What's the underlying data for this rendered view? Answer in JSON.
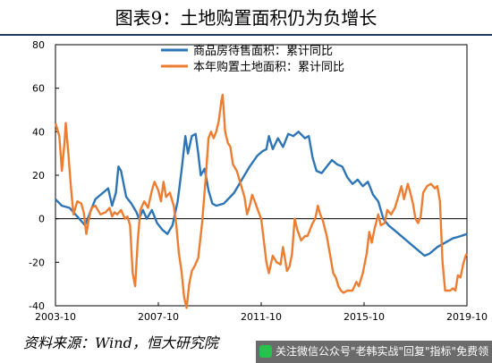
{
  "title": "图表9：土地购置面积仍为负增长",
  "source_text": "资料来源：Wind，恒大研究院",
  "banner": {
    "text": "关注微信公众号\"老韩实战\"回复\"指标\"免费领",
    "icon": "wechat-icon"
  },
  "chart_data": {
    "type": "line",
    "title": "",
    "xlabel": "",
    "ylabel": "",
    "ylim": [
      -40,
      80
    ],
    "yticks": [
      "80",
      "60",
      "40",
      "20",
      "0",
      "-20",
      "-40"
    ],
    "xticks": [
      "2003-10",
      "2007-10",
      "2011-10",
      "2015-10",
      "2019-10"
    ],
    "xlim": [
      2003.75,
      2019.75
    ],
    "legend_position": "top-center",
    "grid": false,
    "series": [
      {
        "name": "商品房待售面积：累计同比",
        "color": "#2e75b6",
        "points": [
          [
            2003.75,
            9
          ],
          [
            2004.0,
            6
          ],
          [
            2004.3,
            5
          ],
          [
            2004.6,
            1
          ],
          [
            2004.9,
            -3
          ],
          [
            2005.1,
            3
          ],
          [
            2005.3,
            9
          ],
          [
            2005.6,
            12
          ],
          [
            2005.8,
            14
          ],
          [
            2005.95,
            6
          ],
          [
            2006.1,
            12
          ],
          [
            2006.2,
            24
          ],
          [
            2006.3,
            22
          ],
          [
            2006.5,
            10
          ],
          [
            2006.7,
            7
          ],
          [
            2006.9,
            3
          ],
          [
            2007.0,
            0
          ],
          [
            2007.15,
            4
          ],
          [
            2007.3,
            0
          ],
          [
            2007.5,
            4
          ],
          [
            2007.7,
            -2
          ],
          [
            2007.9,
            -5
          ],
          [
            2008.1,
            -7
          ],
          [
            2008.3,
            -3
          ],
          [
            2008.5,
            8
          ],
          [
            2008.65,
            22
          ],
          [
            2008.8,
            38
          ],
          [
            2008.9,
            30
          ],
          [
            2009.05,
            38
          ],
          [
            2009.2,
            39
          ],
          [
            2009.3,
            30
          ],
          [
            2009.4,
            20
          ],
          [
            2009.55,
            23
          ],
          [
            2009.7,
            13
          ],
          [
            2009.85,
            7
          ],
          [
            2010.0,
            6
          ],
          [
            2010.3,
            7
          ],
          [
            2010.7,
            12
          ],
          [
            2011.0,
            18
          ],
          [
            2011.3,
            24
          ],
          [
            2011.6,
            29
          ],
          [
            2011.8,
            31
          ],
          [
            2011.95,
            32
          ],
          [
            2012.05,
            38
          ],
          [
            2012.2,
            32
          ],
          [
            2012.4,
            37
          ],
          [
            2012.6,
            33
          ],
          [
            2012.8,
            39
          ],
          [
            2013.0,
            38
          ],
          [
            2013.2,
            40
          ],
          [
            2013.45,
            37
          ],
          [
            2013.6,
            38
          ],
          [
            2013.75,
            28
          ],
          [
            2013.9,
            22
          ],
          [
            2014.1,
            21
          ],
          [
            2014.3,
            24
          ],
          [
            2014.5,
            27
          ],
          [
            2014.7,
            25
          ],
          [
            2014.9,
            24
          ],
          [
            2015.1,
            19
          ],
          [
            2015.3,
            16
          ],
          [
            2015.5,
            18
          ],
          [
            2015.7,
            15
          ],
          [
            2015.9,
            17
          ],
          [
            2016.1,
            11
          ],
          [
            2016.3,
            8
          ],
          [
            2016.5,
            0
          ],
          [
            2016.7,
            -3
          ],
          [
            2016.9,
            -5
          ],
          [
            2017.2,
            -8
          ],
          [
            2017.5,
            -11
          ],
          [
            2017.8,
            -14
          ],
          [
            2018.1,
            -17
          ],
          [
            2018.3,
            -16
          ],
          [
            2018.6,
            -13
          ],
          [
            2018.9,
            -11
          ],
          [
            2019.2,
            -9
          ],
          [
            2019.5,
            -8
          ],
          [
            2019.75,
            -7
          ]
        ]
      },
      {
        "name": "本年购置土地面积：累计同比",
        "color": "#ed7d31",
        "points": [
          [
            2003.75,
            44
          ],
          [
            2003.9,
            38
          ],
          [
            2004.0,
            22
          ],
          [
            2004.1,
            35
          ],
          [
            2004.15,
            44
          ],
          [
            2004.25,
            30
          ],
          [
            2004.35,
            15
          ],
          [
            2004.45,
            2
          ],
          [
            2004.6,
            8
          ],
          [
            2004.75,
            7
          ],
          [
            2004.85,
            3
          ],
          [
            2004.95,
            -7
          ],
          [
            2005.05,
            0
          ],
          [
            2005.15,
            5
          ],
          [
            2005.3,
            6
          ],
          [
            2005.5,
            2
          ],
          [
            2005.7,
            3
          ],
          [
            2005.85,
            5
          ],
          [
            2005.95,
            1
          ],
          [
            2006.05,
            3
          ],
          [
            2006.15,
            2
          ],
          [
            2006.3,
            4
          ],
          [
            2006.45,
            0
          ],
          [
            2006.55,
            1
          ],
          [
            2006.65,
            -3
          ],
          [
            2006.75,
            -25
          ],
          [
            2006.85,
            -31
          ],
          [
            2006.95,
            -10
          ],
          [
            2007.05,
            4
          ],
          [
            2007.2,
            8
          ],
          [
            2007.35,
            5
          ],
          [
            2007.5,
            13
          ],
          [
            2007.6,
            17
          ],
          [
            2007.75,
            13
          ],
          [
            2007.85,
            8
          ],
          [
            2007.95,
            17
          ],
          [
            2008.05,
            10
          ],
          [
            2008.2,
            12
          ],
          [
            2008.35,
            6
          ],
          [
            2008.45,
            -3
          ],
          [
            2008.55,
            -16
          ],
          [
            2008.65,
            -24
          ],
          [
            2008.75,
            -36
          ],
          [
            2008.85,
            -41
          ],
          [
            2008.95,
            -30
          ],
          [
            2009.05,
            -24
          ],
          [
            2009.15,
            -22
          ],
          [
            2009.3,
            -18
          ],
          [
            2009.45,
            -2
          ],
          [
            2009.6,
            20
          ],
          [
            2009.7,
            37
          ],
          [
            2009.8,
            40
          ],
          [
            2009.9,
            37
          ],
          [
            2010.0,
            40
          ],
          [
            2010.1,
            45
          ],
          [
            2010.2,
            54
          ],
          [
            2010.25,
            57
          ],
          [
            2010.35,
            40
          ],
          [
            2010.45,
            35
          ],
          [
            2010.55,
            33
          ],
          [
            2010.65,
            25
          ],
          [
            2010.8,
            22
          ],
          [
            2010.95,
            16
          ],
          [
            2011.1,
            10
          ],
          [
            2011.2,
            2
          ],
          [
            2011.3,
            6
          ],
          [
            2011.4,
            11
          ],
          [
            2011.5,
            8
          ],
          [
            2011.65,
            3
          ],
          [
            2011.75,
            0
          ],
          [
            2011.85,
            -10
          ],
          [
            2011.95,
            -20
          ],
          [
            2012.05,
            -25
          ],
          [
            2012.2,
            -17
          ],
          [
            2012.35,
            -20
          ],
          [
            2012.5,
            -21
          ],
          [
            2012.6,
            -13
          ],
          [
            2012.75,
            -24
          ],
          [
            2012.85,
            -22
          ],
          [
            2012.95,
            -16
          ],
          [
            2013.05,
            0
          ],
          [
            2013.15,
            -5
          ],
          [
            2013.3,
            -10
          ],
          [
            2013.45,
            -8
          ],
          [
            2013.55,
            -8
          ],
          [
            2013.65,
            -5
          ],
          [
            2013.75,
            -2
          ],
          [
            2013.85,
            0
          ],
          [
            2013.95,
            6
          ],
          [
            2014.05,
            2
          ],
          [
            2014.15,
            -1
          ],
          [
            2014.3,
            -8
          ],
          [
            2014.45,
            -18
          ],
          [
            2014.55,
            -25
          ],
          [
            2014.65,
            -27
          ],
          [
            2014.75,
            -31
          ],
          [
            2014.85,
            -33
          ],
          [
            2014.95,
            -34
          ],
          [
            2015.1,
            -33
          ],
          [
            2015.3,
            -33
          ],
          [
            2015.45,
            -29
          ],
          [
            2015.55,
            -31
          ],
          [
            2015.7,
            -25
          ],
          [
            2015.85,
            -16
          ],
          [
            2015.95,
            -6
          ],
          [
            2016.05,
            -11
          ],
          [
            2016.15,
            -5
          ],
          [
            2016.3,
            2
          ],
          [
            2016.4,
            -3
          ],
          [
            2016.55,
            -2
          ],
          [
            2016.65,
            4
          ],
          [
            2016.8,
            2
          ],
          [
            2016.95,
            5
          ],
          [
            2017.05,
            9
          ],
          [
            2017.2,
            15
          ],
          [
            2017.3,
            9
          ],
          [
            2017.45,
            16
          ],
          [
            2017.55,
            12
          ],
          [
            2017.65,
            7
          ],
          [
            2017.75,
            0
          ],
          [
            2017.85,
            -2
          ],
          [
            2017.95,
            1
          ],
          [
            2018.05,
            12
          ],
          [
            2018.2,
            15
          ],
          [
            2018.35,
            16
          ],
          [
            2018.5,
            14
          ],
          [
            2018.6,
            15
          ],
          [
            2018.7,
            8
          ],
          [
            2018.8,
            -20
          ],
          [
            2018.9,
            -33
          ],
          [
            2019.0,
            -33
          ],
          [
            2019.1,
            -33
          ],
          [
            2019.2,
            -32
          ],
          [
            2019.3,
            -33
          ],
          [
            2019.4,
            -26
          ],
          [
            2019.5,
            -27
          ],
          [
            2019.6,
            -21
          ],
          [
            2019.7,
            -17
          ],
          [
            2019.75,
            -16
          ]
        ]
      }
    ]
  }
}
